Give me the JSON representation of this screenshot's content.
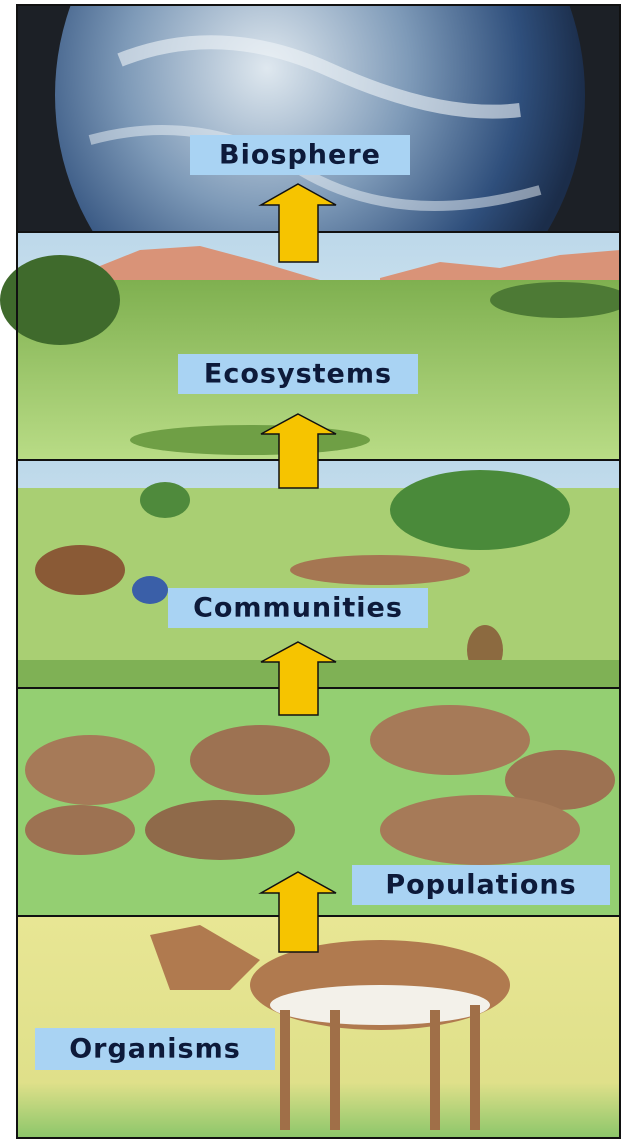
{
  "levels": [
    "Biosphere",
    "Ecosystems",
    "Communities",
    "Populations",
    "Organisms"
  ]
}
